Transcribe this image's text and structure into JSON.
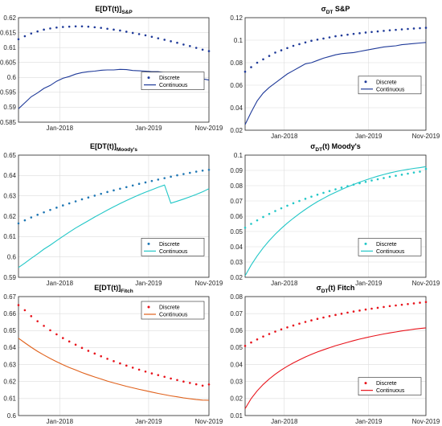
{
  "chart_data": [
    {
      "type": "line",
      "title": {
        "main": "E[DT(t)]",
        "sub": "S&P",
        "sub_style": "subscript"
      },
      "ylim": [
        0.585,
        0.62
      ],
      "y_ticks": [
        "0.585",
        "0.59",
        "0.595",
        "0.6",
        "0.605",
        "0.61",
        "0.615",
        "0.62"
      ],
      "x_ticks": [
        "Jan-2018",
        "Jan-2019",
        "Nov-2019"
      ],
      "legend": {
        "position": "right-middle",
        "discrete_label": "Discrete",
        "continuous_label": "Continuous"
      },
      "grid": true,
      "color": "#1f3a99",
      "continuous_width": 1.0,
      "series": [
        {
          "name": "Discrete",
          "style": "dots",
          "x": [
            0,
            1,
            2,
            3,
            4,
            5,
            6,
            7,
            8,
            9,
            10,
            11,
            12,
            13,
            14,
            15,
            16,
            17,
            18,
            19,
            20,
            21,
            22,
            23,
            24,
            25,
            26,
            27,
            28,
            29,
            30
          ],
          "y": [
            0.6128,
            0.6138,
            0.6147,
            0.6154,
            0.616,
            0.6164,
            0.6167,
            0.6169,
            0.617,
            0.6171,
            0.6171,
            0.617,
            0.6168,
            0.6166,
            0.6163,
            0.616,
            0.6157,
            0.6153,
            0.6149,
            0.6145,
            0.6141,
            0.6136,
            0.6131,
            0.6126,
            0.6121,
            0.6116,
            0.611,
            0.6105,
            0.6099,
            0.6093,
            0.6088
          ]
        },
        {
          "name": "Continuous",
          "style": "line",
          "x": [
            0,
            1,
            2,
            3,
            4,
            5,
            6,
            7,
            8,
            9,
            10,
            11,
            12,
            13,
            14,
            15,
            16,
            17,
            18,
            19,
            20,
            21,
            22,
            23,
            24,
            25,
            26,
            27,
            28,
            29,
            30
          ],
          "y": [
            0.5895,
            0.5915,
            0.5935,
            0.5948,
            0.5963,
            0.5973,
            0.5987,
            0.5997,
            0.6003,
            0.6011,
            0.6016,
            0.6019,
            0.6021,
            0.6024,
            0.6025,
            0.6025,
            0.6027,
            0.6026,
            0.6023,
            0.6022,
            0.6021,
            0.6019,
            0.6019,
            0.6016,
            0.6011,
            0.6009,
            0.6005,
            0.6003,
            0.6,
            0.5995,
            0.5991
          ]
        }
      ]
    },
    {
      "type": "line",
      "title": {
        "main": "σ",
        "main_sub": "DT",
        "rest": " S&P"
      },
      "ylim": [
        0.02,
        0.12
      ],
      "y_ticks": [
        "0.02",
        "0.04",
        "0.06",
        "0.08",
        "0.1",
        "0.12"
      ],
      "x_ticks": [
        "Jan-2018",
        "Jan-2019",
        "Nov-2019"
      ],
      "legend": {
        "position": "right-middle",
        "discrete_label": "Discrete",
        "continuous_label": "Continuous"
      },
      "grid": true,
      "color": "#1f3a99",
      "continuous_width": 1.0,
      "series": [
        {
          "name": "Discrete",
          "style": "dots",
          "x": [
            0,
            1,
            2,
            3,
            4,
            5,
            6,
            7,
            8,
            9,
            10,
            11,
            12,
            13,
            14,
            15,
            16,
            17,
            18,
            19,
            20,
            21,
            22,
            23,
            24,
            25,
            26,
            27,
            28,
            29,
            30
          ],
          "y": [
            0.072,
            0.076,
            0.08,
            0.083,
            0.086,
            0.089,
            0.091,
            0.093,
            0.095,
            0.0965,
            0.098,
            0.0995,
            0.1005,
            0.1015,
            0.1025,
            0.1035,
            0.1042,
            0.1049,
            0.1056,
            0.1062,
            0.1068,
            0.1073,
            0.1078,
            0.1083,
            0.1088,
            0.1092,
            0.1096,
            0.11,
            0.1104,
            0.1107,
            0.111
          ]
        },
        {
          "name": "Continuous",
          "style": "line",
          "x": [
            0,
            1,
            2,
            3,
            4,
            5,
            6,
            7,
            8,
            9,
            10,
            11,
            12,
            13,
            14,
            15,
            16,
            17,
            18,
            19,
            20,
            21,
            22,
            23,
            24,
            25,
            26,
            27,
            28,
            29,
            30
          ],
          "y": [
            0.025,
            0.036,
            0.046,
            0.053,
            0.058,
            0.062,
            0.066,
            0.07,
            0.073,
            0.076,
            0.079,
            0.08,
            0.082,
            0.084,
            0.0855,
            0.087,
            0.088,
            0.0885,
            0.089,
            0.09,
            0.091,
            0.092,
            0.093,
            0.094,
            0.0945,
            0.095,
            0.096,
            0.0965,
            0.097,
            0.0975,
            0.098
          ]
        }
      ]
    },
    {
      "type": "line",
      "title": {
        "main": "E[DT(t)]",
        "sub": "Moody's",
        "sub_style": "subscript"
      },
      "ylim": [
        0.59,
        0.65
      ],
      "y_ticks": [
        "0.59",
        "0.6",
        "0.61",
        "0.62",
        "0.63",
        "0.64",
        "0.65"
      ],
      "x_ticks": [
        "Jan-2018",
        "Jan-2019",
        "Nov-2019"
      ],
      "legend": {
        "position": "right-lower",
        "discrete_label": "Discrete",
        "continuous_label": "Continuous"
      },
      "grid": true,
      "color": "#1f77b4",
      "line_color": "#22c7c7",
      "continuous_width": 1.0,
      "series": [
        {
          "name": "Discrete",
          "style": "dots",
          "x": [
            0,
            1,
            2,
            3,
            4,
            5,
            6,
            7,
            8,
            9,
            10,
            11,
            12,
            13,
            14,
            15,
            16,
            17,
            18,
            19,
            20,
            21,
            22,
            23,
            24,
            25,
            26,
            27,
            28,
            29,
            30
          ],
          "y": [
            0.6165,
            0.618,
            0.6194,
            0.6207,
            0.6219,
            0.6231,
            0.6242,
            0.6253,
            0.6263,
            0.6273,
            0.6283,
            0.6292,
            0.6301,
            0.631,
            0.6319,
            0.6327,
            0.6335,
            0.6343,
            0.6351,
            0.6359,
            0.6366,
            0.6373,
            0.638,
            0.6387,
            0.6394,
            0.6401,
            0.6407,
            0.6413,
            0.6419,
            0.6424,
            0.6428
          ]
        },
        {
          "name": "Continuous",
          "style": "line",
          "x": [
            0,
            1,
            2,
            3,
            4,
            5,
            6,
            7,
            8,
            9,
            10,
            11,
            12,
            13,
            14,
            15,
            16,
            17,
            18,
            19,
            20,
            21,
            22,
            23,
            24,
            25,
            26,
            27,
            28,
            29,
            30
          ],
          "y": [
            0.5948,
            0.597,
            0.5993,
            0.6015,
            0.6038,
            0.6058,
            0.608,
            0.6101,
            0.6122,
            0.6142,
            0.616,
            0.6178,
            0.6196,
            0.6213,
            0.623,
            0.6246,
            0.6262,
            0.6277,
            0.6291,
            0.6305,
            0.6318,
            0.633,
            0.6342,
            0.6353,
            0.6264,
            0.6274,
            0.6284,
            0.6295,
            0.6307,
            0.632,
            0.6335
          ]
        }
      ]
    },
    {
      "type": "line",
      "title": {
        "main": "σ",
        "main_sub": "DT",
        "rest": "(t) Moody's"
      },
      "ylim": [
        0.02,
        0.1
      ],
      "y_ticks": [
        "0.02",
        "0.03",
        "0.04",
        "0.05",
        "0.06",
        "0.07",
        "0.08",
        "0.09",
        "0.1"
      ],
      "x_ticks": [
        "Jan-2018",
        "Jan-2019",
        "Nov-2019"
      ],
      "legend": {
        "position": "right-lower",
        "discrete_label": "Discrete",
        "continuous_label": "Continuous"
      },
      "grid": true,
      "color": "#22c7c7",
      "line_color": "#22c7c7",
      "continuous_width": 1.0,
      "series": [
        {
          "name": "Discrete",
          "style": "dots",
          "x": [
            0,
            1,
            2,
            3,
            4,
            5,
            6,
            7,
            8,
            9,
            10,
            11,
            12,
            13,
            14,
            15,
            16,
            17,
            18,
            19,
            20,
            21,
            22,
            23,
            24,
            25,
            26,
            27,
            28,
            29,
            30
          ],
          "y": [
            0.0525,
            0.055,
            0.0573,
            0.0595,
            0.0615,
            0.0634,
            0.0652,
            0.0669,
            0.0685,
            0.07,
            0.0714,
            0.0728,
            0.0741,
            0.0753,
            0.0765,
            0.0776,
            0.0787,
            0.0797,
            0.0807,
            0.0816,
            0.0825,
            0.0834,
            0.0842,
            0.085,
            0.0858,
            0.0865,
            0.0872,
            0.0879,
            0.0886,
            0.0892,
            0.091
          ]
        },
        {
          "name": "Continuous",
          "style": "line",
          "x": [
            0,
            1,
            2,
            3,
            4,
            5,
            6,
            7,
            8,
            9,
            10,
            11,
            12,
            13,
            14,
            15,
            16,
            17,
            18,
            19,
            20,
            21,
            22,
            23,
            24,
            25,
            26,
            27,
            28,
            29,
            30
          ],
          "y": [
            0.021,
            0.028,
            0.034,
            0.0393,
            0.044,
            0.0482,
            0.052,
            0.0555,
            0.0587,
            0.0617,
            0.0645,
            0.0671,
            0.0695,
            0.0717,
            0.0738,
            0.0757,
            0.0775,
            0.0792,
            0.0808,
            0.0823,
            0.0837,
            0.085,
            0.0862,
            0.0873,
            0.0883,
            0.0892,
            0.09,
            0.0907,
            0.0913,
            0.0918,
            0.0925
          ]
        }
      ]
    },
    {
      "type": "line",
      "title": {
        "main": "E[DT(t)]",
        "sub": "Fitch",
        "sub_style": "subscript"
      },
      "ylim": [
        0.6,
        0.67
      ],
      "y_ticks": [
        "0.6",
        "0.61",
        "0.62",
        "0.63",
        "0.64",
        "0.65",
        "0.66",
        "0.67"
      ],
      "x_ticks": [
        "Jan-2018",
        "Jan-2019",
        "Nov-2019"
      ],
      "legend": {
        "position": "top-right",
        "discrete_label": "Discrete",
        "continuous_label": "Continuous"
      },
      "grid": true,
      "color": "#e8131b",
      "line_color": "#e0601a",
      "continuous_width": 1.0,
      "series": [
        {
          "name": "Discrete",
          "style": "dots",
          "x": [
            0,
            1,
            2,
            3,
            4,
            5,
            6,
            7,
            8,
            9,
            10,
            11,
            12,
            13,
            14,
            15,
            16,
            17,
            18,
            19,
            20,
            21,
            22,
            23,
            24,
            25,
            26,
            27,
            28,
            29,
            30
          ],
          "y": [
            0.665,
            0.662,
            0.6585,
            0.6555,
            0.6528,
            0.6502,
            0.6478,
            0.6456,
            0.6436,
            0.6417,
            0.6398,
            0.6381,
            0.6365,
            0.6349,
            0.6334,
            0.632,
            0.6307,
            0.6294,
            0.6282,
            0.627,
            0.6259,
            0.6248,
            0.6238,
            0.6228,
            0.6218,
            0.6209,
            0.62,
            0.6192,
            0.6184,
            0.6176,
            0.6183
          ]
        },
        {
          "name": "Continuous",
          "style": "line",
          "x": [
            0,
            1,
            2,
            3,
            4,
            5,
            6,
            7,
            8,
            9,
            10,
            11,
            12,
            13,
            14,
            15,
            16,
            17,
            18,
            19,
            20,
            21,
            22,
            23,
            24,
            25,
            26,
            27,
            28,
            29,
            30
          ],
          "y": [
            0.6455,
            0.6428,
            0.6402,
            0.6378,
            0.6356,
            0.6336,
            0.6317,
            0.6299,
            0.6283,
            0.6268,
            0.6253,
            0.624,
            0.6227,
            0.6215,
            0.6203,
            0.6192,
            0.6182,
            0.6172,
            0.6163,
            0.6154,
            0.6146,
            0.6138,
            0.613,
            0.6123,
            0.6116,
            0.611,
            0.6104,
            0.6099,
            0.6094,
            0.6091,
            0.609
          ]
        }
      ]
    },
    {
      "type": "line",
      "title": {
        "main": "σ",
        "main_sub": "DT",
        "rest": "(t) Fitch"
      },
      "ylim": [
        0.01,
        0.08
      ],
      "y_ticks": [
        "0.01",
        "0.02",
        "0.03",
        "0.04",
        "0.05",
        "0.06",
        "0.07",
        "0.08"
      ],
      "x_ticks": [
        "Jan-2018",
        "Jan-2019",
        "Nov-2019"
      ],
      "legend": {
        "position": "right-lower",
        "discrete_label": "Discrete",
        "continuous_label": "Continuous"
      },
      "grid": true,
      "color": "#e8131b",
      "line_color": "#e8131b",
      "continuous_width": 1.0,
      "series": [
        {
          "name": "Discrete",
          "style": "dots",
          "x": [
            0,
            1,
            2,
            3,
            4,
            5,
            6,
            7,
            8,
            9,
            10,
            11,
            12,
            13,
            14,
            15,
            16,
            17,
            18,
            19,
            20,
            21,
            22,
            23,
            24,
            25,
            26,
            27,
            28,
            29,
            30
          ],
          "y": [
            0.051,
            0.053,
            0.0548,
            0.0565,
            0.058,
            0.0594,
            0.0607,
            0.0619,
            0.063,
            0.0641,
            0.0651,
            0.066,
            0.0669,
            0.0677,
            0.0685,
            0.0692,
            0.0699,
            0.0706,
            0.0712,
            0.0718,
            0.0724,
            0.0729,
            0.0734,
            0.0739,
            0.0744,
            0.0748,
            0.0752,
            0.0756,
            0.076,
            0.0764,
            0.0768
          ]
        },
        {
          "name": "Continuous",
          "style": "line",
          "x": [
            0,
            1,
            2,
            3,
            4,
            5,
            6,
            7,
            8,
            9,
            10,
            11,
            12,
            13,
            14,
            15,
            16,
            17,
            18,
            19,
            20,
            21,
            22,
            23,
            24,
            25,
            26,
            27,
            28,
            29,
            30
          ],
          "y": [
            0.014,
            0.02,
            0.0245,
            0.0283,
            0.0315,
            0.0343,
            0.0368,
            0.039,
            0.041,
            0.0428,
            0.0445,
            0.046,
            0.0474,
            0.0487,
            0.0499,
            0.0511,
            0.0521,
            0.0531,
            0.0541,
            0.055,
            0.0558,
            0.0566,
            0.0573,
            0.058,
            0.0586,
            0.0592,
            0.0598,
            0.0603,
            0.0608,
            0.0612,
            0.0616
          ]
        }
      ]
    }
  ]
}
